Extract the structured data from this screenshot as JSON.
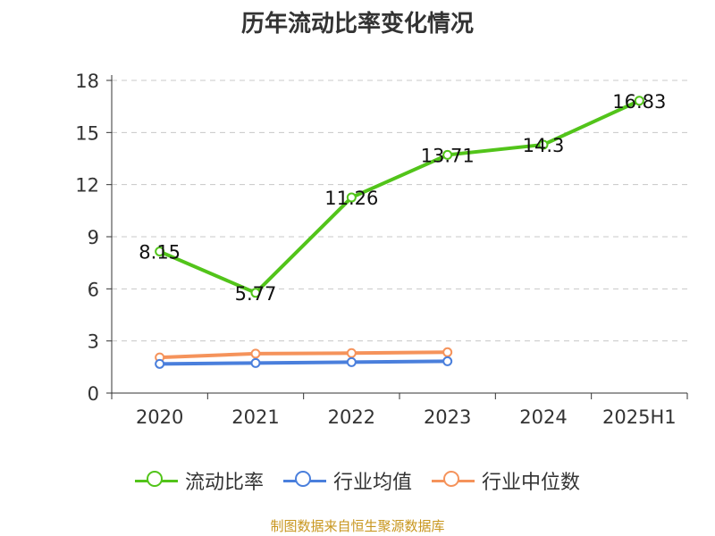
{
  "chart_data": {
    "type": "line",
    "title": "历年流动比率变化情况",
    "categories": [
      "2020",
      "2021",
      "2022",
      "2023",
      "2024",
      "2025H1"
    ],
    "ylim": [
      0,
      18
    ],
    "yticks": [
      0,
      3,
      6,
      9,
      12,
      15,
      18
    ],
    "grid": true,
    "legend_position": "bottom",
    "series": [
      {
        "name": "流动比率",
        "color": "#52c41a",
        "values": [
          8.15,
          5.77,
          11.26,
          13.71,
          14.3,
          16.83
        ],
        "labels": [
          "8.15",
          "5.77",
          "11.26",
          "13.71",
          "14.3",
          "16.83"
        ]
      },
      {
        "name": "行业均值",
        "color": "#4a7fdc",
        "values": [
          1.68,
          1.73,
          1.78,
          1.83,
          null,
          null
        ]
      },
      {
        "name": "行业中位数",
        "color": "#f5935b",
        "values": [
          2.05,
          2.27,
          2.3,
          2.35,
          null,
          null
        ]
      }
    ]
  },
  "footer": {
    "source": "制图数据来自恒生聚源数据库"
  }
}
